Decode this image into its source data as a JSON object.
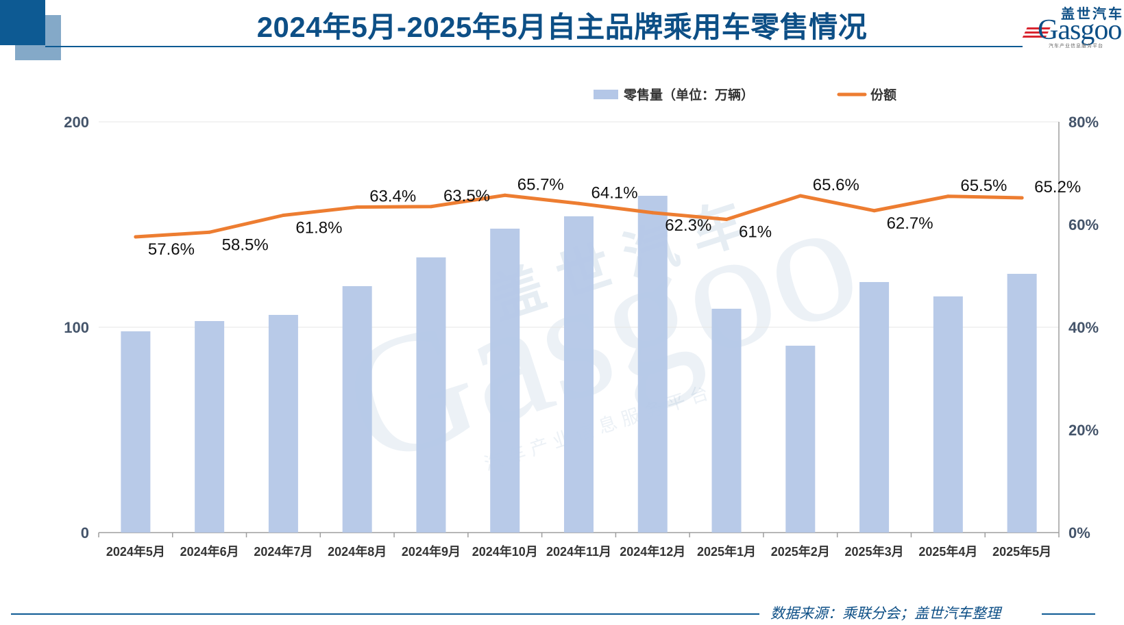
{
  "header": {
    "title": "2024年5月-2025年5月自主品牌乘用车零售情况",
    "logo_cn": "盖世汽车",
    "logo_en": "Gasgoo",
    "logo_sub": "汽车产业信息服务平台"
  },
  "footer": {
    "source": "数据来源：乘联分会；盖世汽车整理"
  },
  "colors": {
    "bar": "#b4c7e7",
    "line": "#ed7d31",
    "accent": "#0d5a93"
  },
  "chart_data": {
    "type": "bar+line",
    "categories": [
      "2024年5月",
      "2024年6月",
      "2024年7月",
      "2024年8月",
      "2024年9月",
      "2024年10月",
      "2024年11月",
      "2024年12月",
      "2025年1月",
      "2025年2月",
      "2025年3月",
      "2025年4月",
      "2025年5月"
    ],
    "series": [
      {
        "name": "零售量（单位：万辆）",
        "type": "bar",
        "axis": "left",
        "values": [
          98,
          103,
          106,
          120,
          134,
          148,
          154,
          164,
          109,
          91,
          122,
          115,
          126
        ]
      },
      {
        "name": "份额",
        "type": "line",
        "axis": "right",
        "values": [
          57.6,
          58.5,
          61.8,
          63.4,
          63.5,
          65.7,
          64.1,
          62.3,
          61,
          65.6,
          62.7,
          65.5,
          65.2
        ],
        "labels": [
          "57.6%",
          "58.5%",
          "61.8%",
          "63.4%",
          "63.5%",
          "65.7%",
          "64.1%",
          "62.3%",
          "61%",
          "65.6%",
          "62.7%",
          "65.5%",
          "65.2%"
        ]
      }
    ],
    "y_left": {
      "range": [
        0,
        200
      ],
      "ticks": [
        "0",
        "100",
        "200"
      ]
    },
    "y_right": {
      "range": [
        0,
        80
      ],
      "ticks": [
        "0%",
        "20%",
        "40%",
        "60%",
        "80%"
      ]
    },
    "legend_position": "top-right",
    "grid": true,
    "watermark": {
      "cn": "盖世汽车",
      "en": "Gasgoo",
      "sub": "汽车产业信息服务平台"
    }
  }
}
